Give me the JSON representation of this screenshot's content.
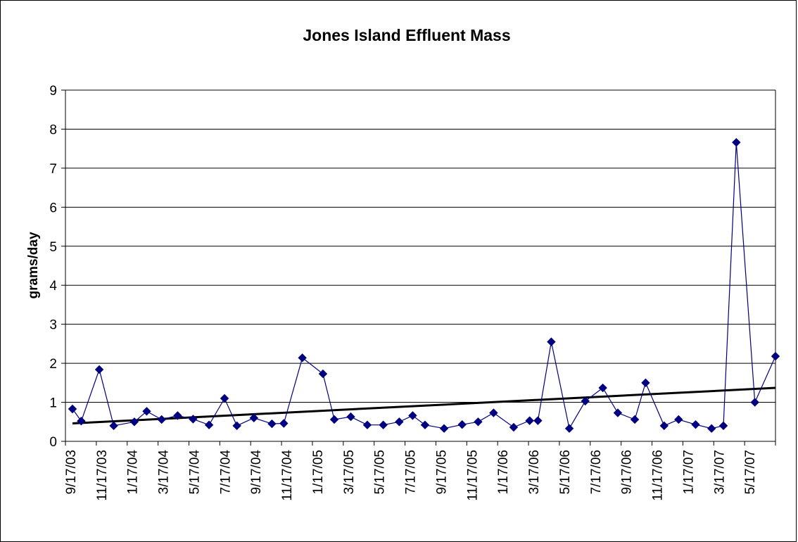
{
  "chart_data": {
    "type": "line",
    "title": "Jones Island Effluent Mass",
    "xlabel": "",
    "ylabel": "grams/day",
    "ylim": [
      0,
      9
    ],
    "yticks": [
      0,
      1,
      2,
      3,
      4,
      5,
      6,
      7,
      8,
      9
    ],
    "grid": "horizontal",
    "legend": "none",
    "x_tick_labels": [
      "9/17/03",
      "11/17/03",
      "1/17/04",
      "3/17/04",
      "5/17/04",
      "7/17/04",
      "9/17/04",
      "11/17/04",
      "1/17/05",
      "3/17/05",
      "5/17/05",
      "7/17/05",
      "9/17/05",
      "11/17/05",
      "1/17/06",
      "3/17/06",
      "5/17/06",
      "7/17/06",
      "9/17/06",
      "11/17/06",
      "1/17/07",
      "3/17/07",
      "5/17/07"
    ],
    "x_range": [
      "2003-09-17",
      "2007-06-12"
    ],
    "colors": {
      "series": "#000080",
      "trend": "#000000",
      "grid": "#000000"
    },
    "series": [
      {
        "marker": "diamond",
        "points": [
          [
            "2003-09-17",
            0.83
          ],
          [
            "2003-10-04",
            0.52
          ],
          [
            "2003-11-08",
            1.84
          ],
          [
            "2003-12-06",
            0.4
          ],
          [
            "2004-01-15",
            0.5
          ],
          [
            "2004-02-08",
            0.77
          ],
          [
            "2004-03-08",
            0.56
          ],
          [
            "2004-04-08",
            0.66
          ],
          [
            "2004-05-08",
            0.57
          ],
          [
            "2004-06-08",
            0.42
          ],
          [
            "2004-07-08",
            1.1
          ],
          [
            "2004-08-01",
            0.4
          ],
          [
            "2004-09-03",
            0.6
          ],
          [
            "2004-10-08",
            0.45
          ],
          [
            "2004-10-31",
            0.46
          ],
          [
            "2004-12-06",
            2.14
          ],
          [
            "2005-01-15",
            1.73
          ],
          [
            "2005-02-06",
            0.56
          ],
          [
            "2005-03-10",
            0.63
          ],
          [
            "2005-04-11",
            0.42
          ],
          [
            "2005-05-12",
            0.42
          ],
          [
            "2005-06-12",
            0.5
          ],
          [
            "2005-07-08",
            0.66
          ],
          [
            "2005-08-01",
            0.42
          ],
          [
            "2005-09-07",
            0.33
          ],
          [
            "2005-10-12",
            0.43
          ],
          [
            "2005-11-12",
            0.5
          ],
          [
            "2005-12-12",
            0.73
          ],
          [
            "2006-01-20",
            0.36
          ],
          [
            "2006-02-20",
            0.53
          ],
          [
            "2006-03-08",
            0.53
          ],
          [
            "2006-04-03",
            2.55
          ],
          [
            "2006-05-08",
            0.33
          ],
          [
            "2006-06-08",
            1.03
          ],
          [
            "2006-07-12",
            1.37
          ],
          [
            "2006-08-10",
            0.73
          ],
          [
            "2006-09-12",
            0.56
          ],
          [
            "2006-10-03",
            1.5
          ],
          [
            "2006-11-08",
            0.4
          ],
          [
            "2006-12-06",
            0.56
          ],
          [
            "2007-01-08",
            0.43
          ],
          [
            "2007-02-08",
            0.33
          ],
          [
            "2007-03-03",
            0.4
          ],
          [
            "2007-03-28",
            7.66
          ],
          [
            "2007-05-03",
            1.0
          ],
          [
            "2007-06-12",
            2.18
          ]
        ]
      }
    ],
    "trendline": {
      "type": "linear",
      "start": [
        "2003-09-17",
        0.46
      ],
      "end": [
        "2007-06-12",
        1.37
      ]
    }
  }
}
